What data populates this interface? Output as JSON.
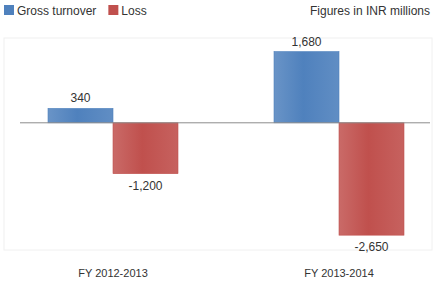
{
  "chart_data": {
    "type": "bar",
    "subtitle": "Figures in INR millions",
    "categories": [
      "FY 2012-2013",
      "FY 2013-2014"
    ],
    "series": [
      {
        "name": "Gross turnover",
        "color": "#4f81bd",
        "values": [
          340,
          1680
        ],
        "value_labels": [
          "340",
          "1,680"
        ]
      },
      {
        "name": "Loss",
        "color": "#c0504d",
        "values": [
          -1200,
          -2650
        ],
        "value_labels": [
          "-1,200",
          "-2,650"
        ]
      }
    ],
    "ylim": [
      -3000,
      2000
    ],
    "grid": false,
    "legend": "top-left",
    "data_labels": true,
    "tick_labels": false
  }
}
